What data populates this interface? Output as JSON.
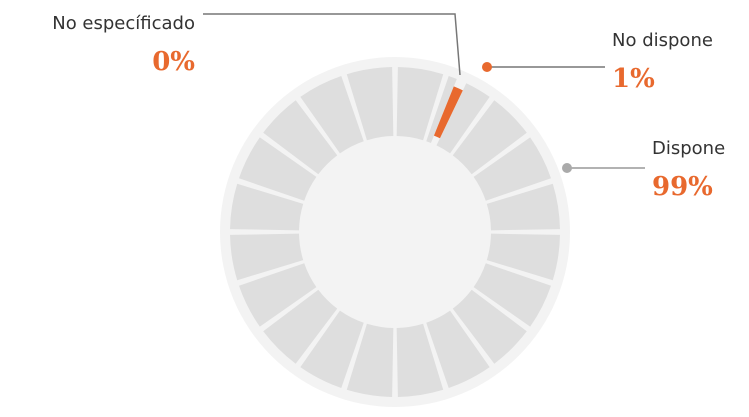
{
  "chart_data": {
    "type": "pie",
    "categories": [
      "No específicado",
      "No dispone",
      "Dispone"
    ],
    "values": [
      0,
      1,
      99
    ],
    "value_labels": [
      "0%",
      "1%",
      "99%"
    ],
    "colors": [
      "#e8692e",
      "#e8692e",
      "#dedede"
    ]
  }
}
